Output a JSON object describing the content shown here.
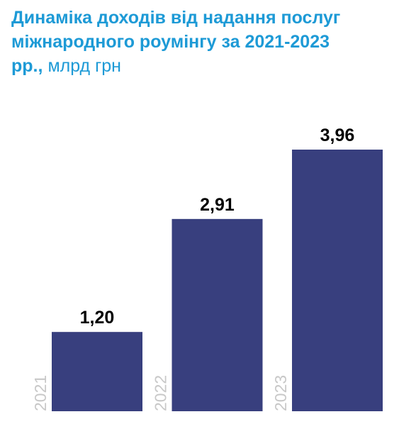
{
  "chart_data": {
    "type": "bar",
    "title": "Динаміка доходів від надання послуг міжнародного роумінгу за 2021-2023 рр.,",
    "subtitle": "млрд грн",
    "categories": [
      "2021",
      "2022",
      "2023"
    ],
    "values": [
      1.2,
      2.91,
      3.96
    ],
    "value_labels": [
      "1,20",
      "2,91",
      "3,96"
    ],
    "color": "#383f7e"
  }
}
